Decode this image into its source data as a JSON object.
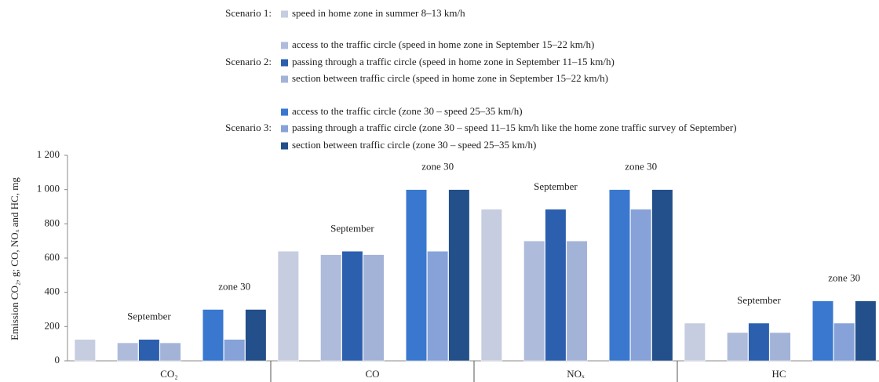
{
  "chart_data": {
    "type": "bar",
    "y_label": "Emission CO₂, g; CO, NOₓ and HC, mg",
    "categories": [
      "CO₂",
      "CO",
      "NOₓ",
      "HC"
    ],
    "ylim": [
      0,
      1200
    ],
    "yticks": [
      0,
      200,
      400,
      600,
      800,
      {
        "value": 1000,
        "label": "1 000"
      },
      {
        "value": 1200,
        "label": "1 200"
      }
    ],
    "scenarios": [
      {
        "label": "Scenario 1:",
        "series": [
          {
            "name": "speed in home zone in summer 8–13 km/h",
            "color": "#c6cde0",
            "values": [
              125,
              640,
              885,
              220
            ]
          }
        ]
      },
      {
        "label": "Scenario 2:",
        "annotation": "September",
        "series": [
          {
            "name": "access to the traffic circle (speed in home zone in September 15–22 km/h)",
            "color": "#aebbdb",
            "values": [
              105,
              620,
              700,
              165
            ]
          },
          {
            "name": "passing through a traffic circle (speed in home zone in September 11–15 km/h)",
            "color": "#2c5fae",
            "values": [
              125,
              640,
              885,
              220
            ]
          },
          {
            "name": "section between traffic circle (speed in home zone in September 15–22 km/h)",
            "color": "#a3b3d8",
            "values": [
              105,
              620,
              700,
              165
            ]
          }
        ]
      },
      {
        "label": "Scenario 3:",
        "annotation": "zone 30",
        "series": [
          {
            "name": "access to the traffic circle (zone 30 – speed 25–35 km/h)",
            "color": "#3a78d0",
            "values": [
              300,
              1000,
              1000,
              350
            ]
          },
          {
            "name": "passing through a traffic circle (zone 30 – speed 11–15 km/h like the home zone traffic survey of September)",
            "color": "#86a2d8",
            "values": [
              125,
              640,
              885,
              220
            ]
          },
          {
            "name": "section between traffic circle (zone 30 – speed 25–35 km/h)",
            "color": "#234f8a",
            "values": [
              300,
              1000,
              1000,
              350
            ]
          }
        ]
      }
    ]
  }
}
